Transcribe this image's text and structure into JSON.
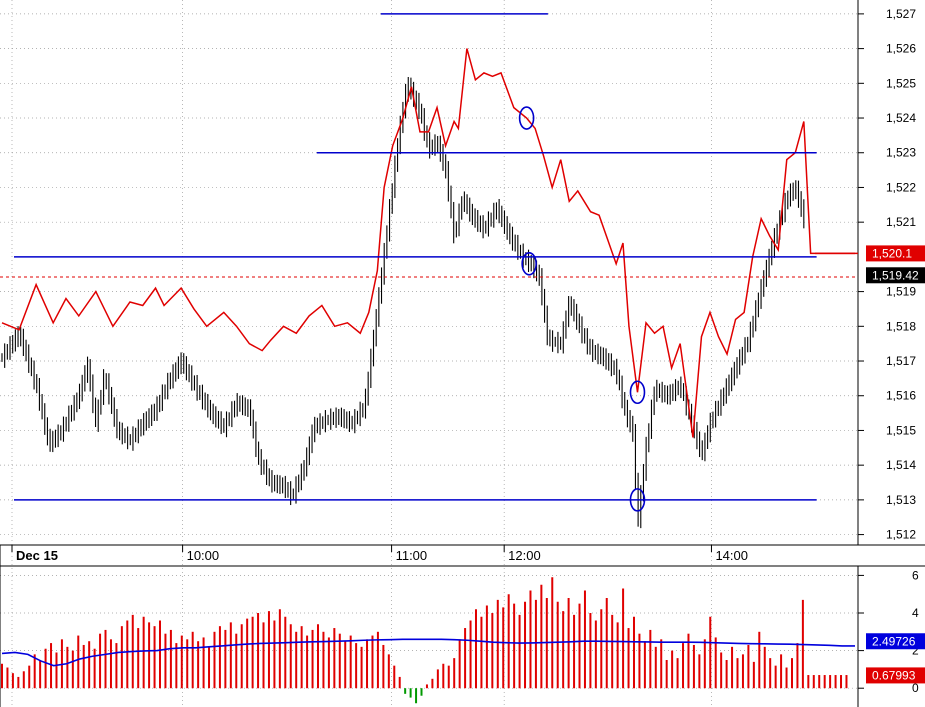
{
  "chart_data": [
    {
      "type": "line",
      "panel": "price",
      "ylim": [
        1511.7,
        1527.4
      ],
      "yticks": [
        "1,527",
        "1,526",
        "1,525",
        "1,524",
        "1,523",
        "1,522",
        "1,521",
        "1,519",
        "1,518",
        "1,517",
        "1,516",
        "1,515",
        "1,514",
        "1,513",
        "1,512"
      ],
      "ytick_values": [
        1527,
        1526,
        1525,
        1524,
        1523,
        1522,
        1521,
        1519,
        1518,
        1517,
        1516,
        1515,
        1514,
        1513,
        1512
      ],
      "xlabels": [
        "Dec 15",
        "10:00",
        "11:00",
        "12:00",
        "14:00"
      ],
      "price_label": "1,519.42",
      "price_label_value": 1519.42,
      "overlay_label": "1,520.1",
      "overlay_label_value": 1520.1,
      "colors": {
        "price": "#000000",
        "overlay": "#e00000",
        "levels": "#0000cc",
        "price_label_bg": "#000000",
        "overlay_label_bg": "#e00000"
      },
      "horizontal_levels": [
        {
          "value": 1527.0,
          "x_from": 0.43,
          "x_to": 0.64
        },
        {
          "value": 1523.0,
          "x_from": 0.355,
          "x_to": 0.955
        },
        {
          "value": 1520.0,
          "x_from": 0.0,
          "x_to": 0.955
        },
        {
          "value": 1513.0,
          "x_from": 0.0,
          "x_to": 0.955
        }
      ],
      "circled_points": [
        {
          "t": 0.615,
          "value": 1524.0
        },
        {
          "t": 0.618,
          "value": 1519.8
        },
        {
          "t": 0.745,
          "value": 1516.1
        },
        {
          "t": 0.745,
          "value": 1513.0
        }
      ],
      "series": [
        {
          "points": [
            [
              0,
              1517.1
            ],
            [
              0.02,
              1517.8
            ],
            [
              0.04,
              1516.3
            ],
            [
              0.055,
              1514.6
            ],
            [
              0.07,
              1515.0
            ],
            [
              0.09,
              1516.0
            ],
            [
              0.1,
              1516.9
            ],
            [
              0.11,
              1515.2
            ],
            [
              0.12,
              1516.6
            ],
            [
              0.135,
              1515.0
            ],
            [
              0.15,
              1514.7
            ],
            [
              0.165,
              1515.2
            ],
            [
              0.18,
              1515.6
            ],
            [
              0.195,
              1516.4
            ],
            [
              0.21,
              1517.0
            ],
            [
              0.23,
              1516.1
            ],
            [
              0.245,
              1515.5
            ],
            [
              0.26,
              1515.1
            ],
            [
              0.275,
              1515.8
            ],
            [
              0.29,
              1515.6
            ],
            [
              0.3,
              1514.2
            ],
            [
              0.315,
              1513.5
            ],
            [
              0.33,
              1513.4
            ],
            [
              0.34,
              1513.1
            ],
            [
              0.355,
              1514.0
            ],
            [
              0.365,
              1515.1
            ],
            [
              0.38,
              1515.3
            ],
            [
              0.395,
              1515.4
            ],
            [
              0.41,
              1515.2
            ],
            [
              0.425,
              1515.7
            ],
            [
              0.44,
              1518.5
            ],
            [
              0.455,
              1521.5
            ],
            [
              0.465,
              1523.5
            ],
            [
              0.475,
              1525.0
            ],
            [
              0.49,
              1524.2
            ],
            [
              0.5,
              1523.1
            ],
            [
              0.51,
              1523.3
            ],
            [
              0.52,
              1522.5
            ],
            [
              0.53,
              1520.6
            ],
            [
              0.54,
              1521.7
            ],
            [
              0.55,
              1521.2
            ],
            [
              0.565,
              1520.8
            ],
            [
              0.58,
              1521.4
            ],
            [
              0.595,
              1520.6
            ],
            [
              0.61,
              1520.0
            ],
            [
              0.62,
              1519.8
            ],
            [
              0.63,
              1519.4
            ],
            [
              0.64,
              1517.6
            ],
            [
              0.655,
              1517.5
            ],
            [
              0.665,
              1518.7
            ],
            [
              0.68,
              1517.8
            ],
            [
              0.69,
              1517.3
            ],
            [
              0.705,
              1517.1
            ],
            [
              0.72,
              1516.7
            ],
            [
              0.73,
              1515.6
            ],
            [
              0.74,
              1514.9
            ],
            [
              0.745,
              1512.3
            ],
            [
              0.755,
              1514.5
            ],
            [
              0.765,
              1516.2
            ],
            [
              0.78,
              1516.0
            ],
            [
              0.795,
              1516.3
            ],
            [
              0.81,
              1515.1
            ],
            [
              0.82,
              1514.3
            ],
            [
              0.83,
              1515.2
            ],
            [
              0.845,
              1516.0
            ],
            [
              0.86,
              1516.8
            ],
            [
              0.875,
              1517.6
            ],
            [
              0.89,
              1519.1
            ],
            [
              0.905,
              1520.5
            ],
            [
              0.92,
              1521.7
            ],
            [
              0.93,
              1522.0
            ],
            [
              0.94,
              1521.1
            ]
          ]
        },
        {
          "points": [
            [
              0,
              1518.1
            ],
            [
              0.02,
              1517.9
            ],
            [
              0.04,
              1519.2
            ],
            [
              0.06,
              1518.1
            ],
            [
              0.075,
              1518.8
            ],
            [
              0.09,
              1518.3
            ],
            [
              0.11,
              1519.0
            ],
            [
              0.13,
              1518.0
            ],
            [
              0.15,
              1518.7
            ],
            [
              0.165,
              1518.6
            ],
            [
              0.18,
              1519.1
            ],
            [
              0.19,
              1518.6
            ],
            [
              0.21,
              1519.1
            ],
            [
              0.225,
              1518.5
            ],
            [
              0.24,
              1518.0
            ],
            [
              0.26,
              1518.4
            ],
            [
              0.275,
              1518.0
            ],
            [
              0.29,
              1517.5
            ],
            [
              0.305,
              1517.3
            ],
            [
              0.315,
              1517.6
            ],
            [
              0.33,
              1518.0
            ],
            [
              0.345,
              1517.8
            ],
            [
              0.36,
              1518.3
            ],
            [
              0.375,
              1518.6
            ],
            [
              0.39,
              1518.0
            ],
            [
              0.405,
              1518.1
            ],
            [
              0.42,
              1517.8
            ],
            [
              0.43,
              1518.4
            ],
            [
              0.44,
              1519.6
            ],
            [
              0.448,
              1522.0
            ],
            [
              0.458,
              1523.2
            ],
            [
              0.47,
              1524.0
            ],
            [
              0.48,
              1524.9
            ],
            [
              0.49,
              1523.6
            ],
            [
              0.5,
              1523.6
            ],
            [
              0.51,
              1524.3
            ],
            [
              0.52,
              1523.2
            ],
            [
              0.53,
              1523.9
            ],
            [
              0.535,
              1523.7
            ],
            [
              0.545,
              1526.0
            ],
            [
              0.555,
              1525.1
            ],
            [
              0.565,
              1525.3
            ],
            [
              0.575,
              1525.2
            ],
            [
              0.585,
              1525.3
            ],
            [
              0.6,
              1524.3
            ],
            [
              0.615,
              1524.0
            ],
            [
              0.625,
              1523.7
            ],
            [
              0.635,
              1522.9
            ],
            [
              0.645,
              1522.0
            ],
            [
              0.655,
              1522.8
            ],
            [
              0.665,
              1521.6
            ],
            [
              0.675,
              1521.9
            ],
            [
              0.69,
              1521.3
            ],
            [
              0.7,
              1521.2
            ],
            [
              0.71,
              1520.5
            ],
            [
              0.72,
              1519.8
            ],
            [
              0.728,
              1520.4
            ],
            [
              0.735,
              1518.0
            ],
            [
              0.745,
              1516.1
            ],
            [
              0.755,
              1518.1
            ],
            [
              0.765,
              1517.8
            ],
            [
              0.775,
              1518.0
            ],
            [
              0.785,
              1516.8
            ],
            [
              0.795,
              1517.5
            ],
            [
              0.81,
              1514.8
            ],
            [
              0.82,
              1517.7
            ],
            [
              0.83,
              1518.4
            ],
            [
              0.84,
              1517.7
            ],
            [
              0.85,
              1517.2
            ],
            [
              0.86,
              1518.2
            ],
            [
              0.87,
              1518.4
            ],
            [
              0.88,
              1520.0
            ],
            [
              0.89,
              1521.1
            ],
            [
              0.9,
              1520.6
            ],
            [
              0.91,
              1520.2
            ],
            [
              0.92,
              1522.8
            ],
            [
              0.93,
              1523.0
            ],
            [
              0.94,
              1523.9
            ],
            [
              0.948,
              1520.1
            ],
            [
              1.0,
              1520.1
            ]
          ]
        }
      ]
    },
    {
      "type": "bar",
      "panel": "oscillator",
      "ylim": [
        -1.0,
        6.5
      ],
      "yticks": [
        "6",
        "4",
        "2",
        "0"
      ],
      "ytick_values": [
        6,
        4,
        2,
        0
      ],
      "avg_label": "2.49726",
      "avg_label_value": 2.49726,
      "last_label": "0.67993",
      "last_label_value": 0.67993,
      "colors": {
        "positive": "#e00000",
        "negative": "#009900",
        "average": "#0000dd",
        "avg_label_bg": "#0000dd",
        "last_label_bg": "#e00000"
      },
      "bars": [
        1.3,
        1.1,
        0.8,
        0.6,
        0.9,
        1.2,
        1.8,
        1.5,
        2.1,
        2.4,
        1.9,
        2.6,
        2.2,
        2.0,
        2.8,
        2.3,
        2.5,
        2.1,
        2.9,
        3.1,
        2.6,
        2.4,
        3.3,
        3.6,
        3.9,
        3.2,
        3.8,
        3.5,
        3.3,
        3.6,
        2.9,
        3.1,
        2.4,
        2.8,
        2.6,
        3.0,
        2.5,
        2.7,
        2.2,
        3.0,
        3.3,
        3.1,
        3.5,
        2.9,
        3.4,
        3.7,
        3.8,
        4.0,
        3.5,
        4.1,
        3.6,
        4.2,
        3.8,
        3.4,
        3.0,
        3.3,
        2.8,
        3.1,
        3.4,
        3.0,
        2.7,
        3.2,
        2.9,
        2.5,
        2.8,
        2.4,
        2.2,
        2.6,
        2.8,
        3.0,
        2.3,
        1.8,
        1.2,
        0.6,
        -0.3,
        -0.5,
        -0.8,
        -0.4,
        0.2,
        0.5,
        1.0,
        1.3,
        1.2,
        1.6,
        2.6,
        3.2,
        3.6,
        4.2,
        3.8,
        4.4,
        4.0,
        4.7,
        4.3,
        5.0,
        4.5,
        3.9,
        4.6,
        5.2,
        4.7,
        5.5,
        4.8,
        5.9,
        4.6,
        4.1,
        4.8,
        3.9,
        4.5,
        5.2,
        4.0,
        3.6,
        4.2,
        4.8,
        3.9,
        3.5,
        5.3,
        3.2,
        3.8,
        2.9,
        2.5,
        3.1,
        2.2,
        2.6,
        1.5,
        2.0,
        1.6,
        2.4,
        2.9,
        2.3,
        1.8,
        2.6,
        3.8,
        2.7,
        1.9,
        1.5,
        2.2,
        1.6,
        1.8,
        2.3,
        1.4,
        3.0,
        2.2,
        1.6,
        1.2,
        1.8,
        1.1,
        1.6,
        2.4,
        4.7,
        0.7,
        0.7,
        0.7,
        0.7,
        0.7,
        0.7,
        0.7,
        0.7
      ],
      "average": [
        1.85,
        1.9,
        1.8,
        1.45,
        1.2,
        1.3,
        1.55,
        1.7,
        1.8,
        1.9,
        1.95,
        1.98,
        2.0,
        2.1,
        2.15,
        2.15,
        2.2,
        2.25,
        2.3,
        2.35,
        2.38,
        2.4,
        2.42,
        2.45,
        2.47,
        2.48,
        2.5,
        2.52,
        2.55,
        2.57,
        2.58,
        2.6,
        2.6,
        2.6,
        2.6,
        2.58,
        2.55,
        2.5,
        2.45,
        2.42,
        2.4,
        2.41,
        2.43,
        2.45,
        2.47,
        2.5,
        2.5,
        2.49,
        2.48,
        2.47,
        2.46,
        2.45,
        2.45,
        2.45,
        2.44,
        2.42,
        2.4,
        2.38,
        2.37,
        2.36,
        2.35,
        2.34,
        2.32,
        2.3,
        2.28,
        2.25,
        2.25
      ]
    }
  ]
}
